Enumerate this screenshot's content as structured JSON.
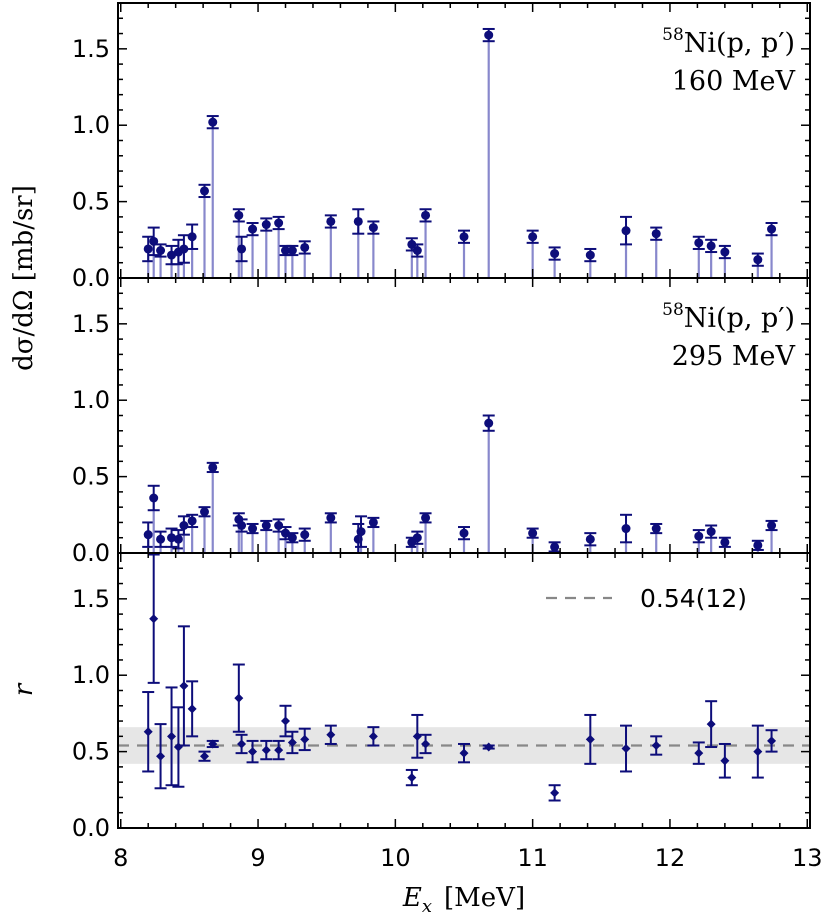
{
  "chart_data": {
    "type": "scatter",
    "x_axis": {
      "label_var": "E",
      "label_sub": "x",
      "label_unit": "[MeV]",
      "range": [
        7.98,
        13.02
      ],
      "ticks": [
        "8",
        "9",
        "10",
        "11",
        "12",
        "13"
      ]
    },
    "shared_ylabel": "dσ/dΩ  [mb/sr]",
    "colors": {
      "marker": "#0d0d7a",
      "stem": "#8888cc",
      "dashed": "#888888",
      "band": "#e6e6e6"
    },
    "panels": [
      {
        "id": "panel-160",
        "annotation": {
          "nucleus_mass": "58",
          "reaction": "Ni(p, p′)",
          "energy": "160 MeV"
        },
        "ylim": [
          0,
          1.8
        ],
        "yticks": [
          "0.0",
          "0.5",
          "1.0",
          "1.5"
        ],
        "x": [
          8.2,
          8.24,
          8.29,
          8.37,
          8.42,
          8.46,
          8.52,
          8.61,
          8.67,
          8.86,
          8.88,
          8.96,
          9.06,
          9.15,
          9.2,
          9.25,
          9.34,
          9.53,
          9.73,
          9.84,
          10.12,
          10.16,
          10.22,
          10.5,
          10.68,
          11.0,
          11.16,
          11.42,
          11.68,
          11.9,
          12.21,
          12.3,
          12.4,
          12.64,
          12.74
        ],
        "y": [
          0.19,
          0.24,
          0.18,
          0.15,
          0.17,
          0.19,
          0.27,
          0.57,
          1.02,
          0.41,
          0.19,
          0.32,
          0.35,
          0.36,
          0.18,
          0.18,
          0.2,
          0.37,
          0.37,
          0.33,
          0.22,
          0.18,
          0.41,
          0.27,
          1.59,
          0.27,
          0.16,
          0.15,
          0.31,
          0.29,
          0.23,
          0.21,
          0.17,
          0.12,
          0.32
        ],
        "err": [
          0.08,
          0.09,
          0.04,
          0.06,
          0.08,
          0.09,
          0.08,
          0.04,
          0.04,
          0.04,
          0.08,
          0.04,
          0.04,
          0.04,
          0.03,
          0.03,
          0.04,
          0.04,
          0.08,
          0.04,
          0.04,
          0.04,
          0.04,
          0.04,
          0.04,
          0.04,
          0.04,
          0.04,
          0.09,
          0.04,
          0.04,
          0.04,
          0.04,
          0.04,
          0.04
        ]
      },
      {
        "id": "panel-295",
        "annotation": {
          "nucleus_mass": "58",
          "reaction": "Ni(p, p′)",
          "energy": "295 MeV"
        },
        "ylim": [
          0,
          1.8
        ],
        "yticks": [
          "0.0",
          "0.5",
          "1.0",
          "1.5"
        ],
        "x": [
          8.2,
          8.24,
          8.29,
          8.37,
          8.42,
          8.46,
          8.52,
          8.61,
          8.67,
          8.86,
          8.88,
          8.96,
          9.06,
          9.15,
          9.2,
          9.25,
          9.34,
          9.53,
          9.73,
          9.75,
          9.84,
          10.12,
          10.16,
          10.22,
          10.5,
          10.68,
          11.0,
          11.16,
          11.42,
          11.68,
          11.9,
          12.21,
          12.3,
          12.4,
          12.64,
          12.74
        ],
        "y": [
          0.12,
          0.36,
          0.09,
          0.1,
          0.09,
          0.18,
          0.21,
          0.27,
          0.56,
          0.22,
          0.18,
          0.16,
          0.18,
          0.18,
          0.13,
          0.1,
          0.12,
          0.23,
          0.09,
          0.14,
          0.2,
          0.07,
          0.1,
          0.23,
          0.13,
          0.85,
          0.13,
          0.04,
          0.09,
          0.16,
          0.16,
          0.11,
          0.14,
          0.07,
          0.05,
          0.18
        ],
        "err": [
          0.08,
          0.08,
          0.05,
          0.06,
          0.06,
          0.06,
          0.04,
          0.03,
          0.03,
          0.04,
          0.04,
          0.03,
          0.03,
          0.04,
          0.04,
          0.03,
          0.04,
          0.03,
          0.1,
          0.1,
          0.03,
          0.03,
          0.04,
          0.03,
          0.04,
          0.05,
          0.03,
          0.03,
          0.04,
          0.09,
          0.03,
          0.04,
          0.04,
          0.03,
          0.03,
          0.03
        ]
      },
      {
        "id": "panel-ratio",
        "ylabel": "r",
        "ylim": [
          0,
          1.8
        ],
        "yticks": [
          "0.0",
          "0.5",
          "1.0",
          "1.5"
        ],
        "legend": {
          "label": "0.54(12)",
          "position": "top-right"
        },
        "mean": 0.54,
        "band": [
          0.42,
          0.66
        ],
        "x": [
          8.2,
          8.24,
          8.29,
          8.37,
          8.42,
          8.46,
          8.52,
          8.61,
          8.67,
          8.86,
          8.88,
          8.96,
          9.06,
          9.15,
          9.2,
          9.25,
          9.34,
          9.53,
          9.84,
          10.12,
          10.16,
          10.22,
          10.5,
          10.68,
          11.16,
          11.42,
          11.68,
          11.9,
          12.21,
          12.3,
          12.4,
          12.64,
          12.74
        ],
        "y": [
          0.63,
          1.37,
          0.47,
          0.6,
          0.53,
          0.93,
          0.78,
          0.47,
          0.55,
          0.85,
          0.55,
          0.5,
          0.51,
          0.51,
          0.7,
          0.56,
          0.58,
          0.61,
          0.6,
          0.33,
          0.6,
          0.55,
          0.49,
          0.53,
          0.23,
          0.58,
          0.52,
          0.54,
          0.49,
          0.68,
          0.44,
          0.5,
          0.57
        ],
        "err": [
          0.26,
          0.42,
          0.21,
          0.32,
          0.26,
          0.39,
          0.18,
          0.03,
          0.02,
          0.22,
          0.06,
          0.07,
          0.06,
          0.06,
          0.1,
          0.07,
          0.07,
          0.06,
          0.06,
          0.05,
          0.14,
          0.06,
          0.06,
          0.01,
          0.05,
          0.16,
          0.15,
          0.06,
          0.07,
          0.15,
          0.11,
          0.17,
          0.07
        ]
      }
    ]
  }
}
